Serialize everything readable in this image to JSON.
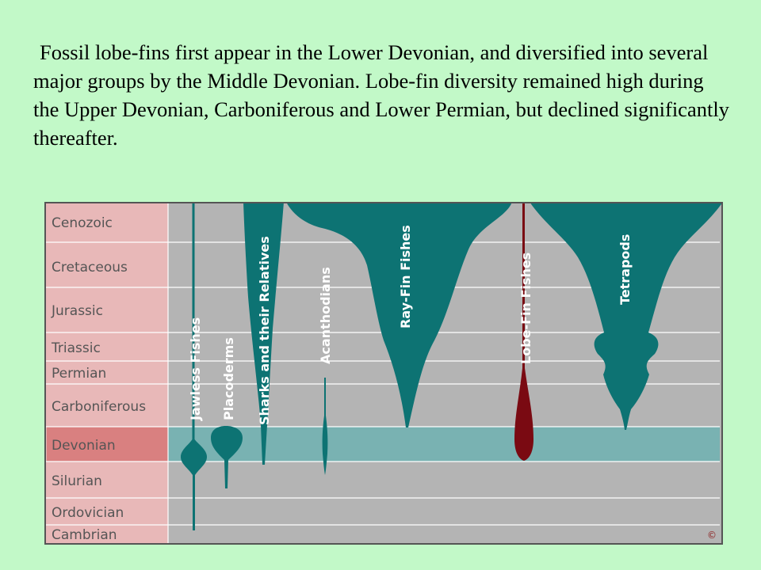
{
  "caption": "Fossil lobe-fins first appear in the Lower Devonian, and diversified into several major groups by the Middle Devonian. Lobe-fin diversity remained high during the Upper Devonian, Carboniferous and Lower Permian, but declined significantly thereafter.",
  "periods": [
    "Cenozoic",
    "Cretaceous",
    "Jurassic",
    "Triassic",
    "Permian",
    "Carboniferous",
    "Devonian",
    "Silurian",
    "Ordovician",
    "Cambrian"
  ],
  "highlighted_period": "Devonian",
  "groups": [
    "Jawless Fishes",
    "Placoderms",
    "Sharks and their Relatives",
    "Acanthodians",
    "Ray-Fin Fishes",
    "Lobe-Fin Fishes",
    "Tetrapods"
  ],
  "copyright_mark": "©",
  "colors": {
    "background": "#c2f9c8",
    "period_column": "#e8b8b8",
    "highlight_label": "#d98080",
    "chart_area": "#b4b4b4",
    "highlight_band": "#79b2b2",
    "lineage": "#0d7373",
    "lobe_fin": "#7a0a12"
  }
}
